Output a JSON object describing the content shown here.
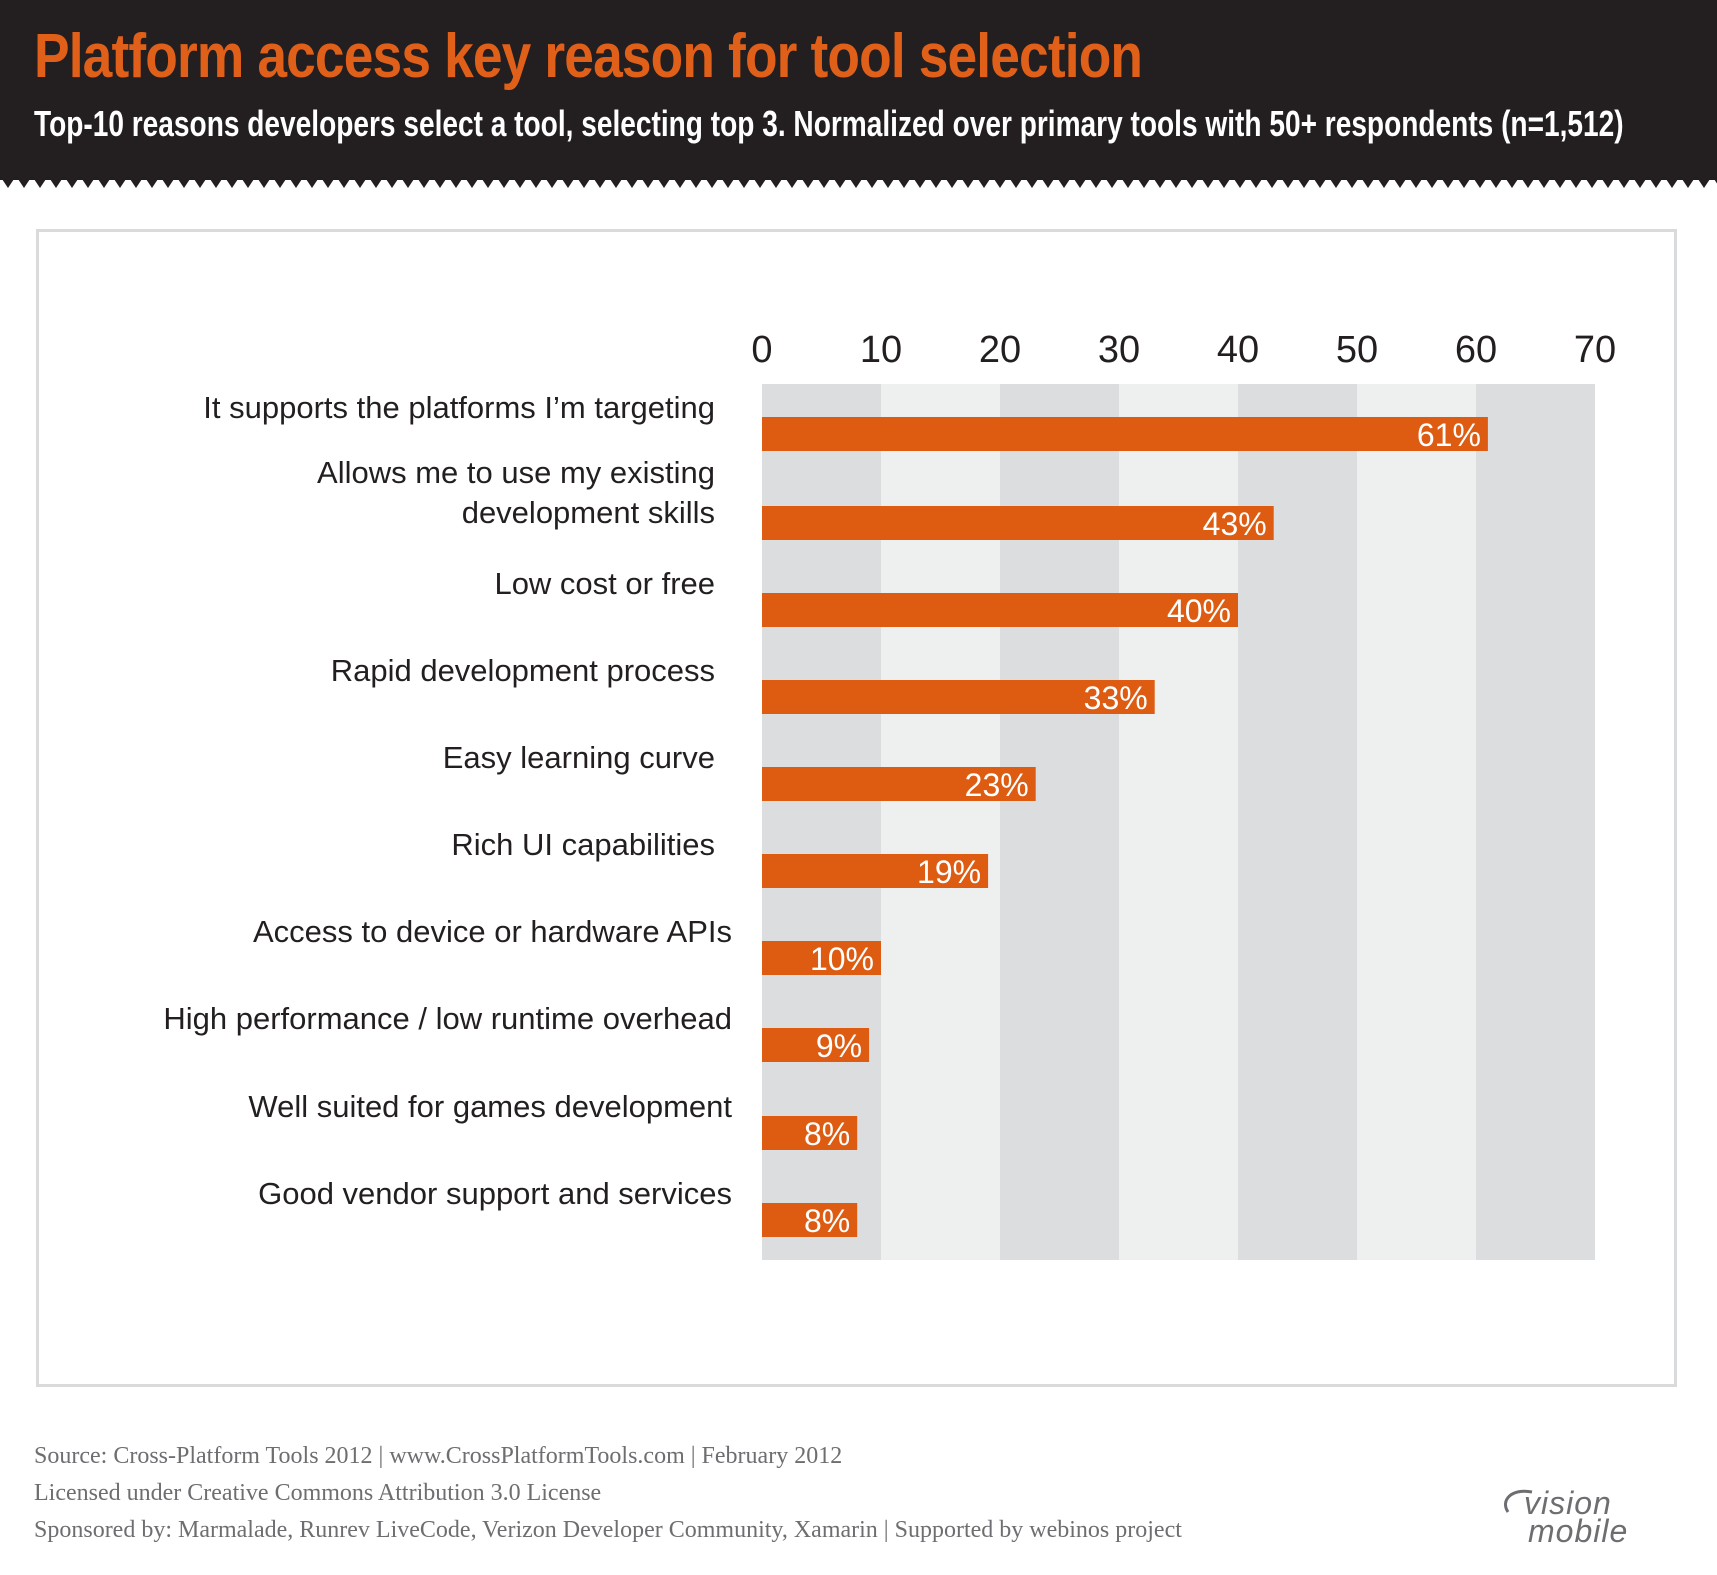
{
  "header": {
    "title": "Platform access key reason for tool selection",
    "subtitle": "Top-10 reasons developers select a tool, selecting top 3. Normalized over primary tools with 50+ respondents (n=1,512)"
  },
  "chart_data": {
    "type": "bar",
    "orientation": "horizontal",
    "title": "Platform access key reason for tool selection",
    "subtitle": "Top-10 reasons developers select a tool, selecting top 3. Normalized over primary tools with 50+ respondents (n=1,512)",
    "xlabel": "",
    "ylabel": "",
    "xlim": [
      0,
      70
    ],
    "ticks": [
      0,
      10,
      20,
      30,
      40,
      50,
      60,
      70
    ],
    "categories": [
      [
        "It supports the platforms I’m targeting"
      ],
      [
        "Allows me to use my existing",
        "development skills"
      ],
      [
        "Low cost or free"
      ],
      [
        "Rapid development process"
      ],
      [
        "Easy learning curve"
      ],
      [
        "Rich UI capabilities"
      ],
      [
        "Access to device or hardware APIs"
      ],
      [
        "High performance / low runtime overhead"
      ],
      [
        "Well suited for games development"
      ],
      [
        "Good vendor support and services"
      ]
    ],
    "values": [
      61,
      43,
      40,
      33,
      23,
      19,
      10,
      9,
      8,
      8
    ],
    "value_labels": [
      "61%",
      "43%",
      "40%",
      "33%",
      "23%",
      "19%",
      "10%",
      "9%",
      "8%",
      "8%"
    ],
    "bar_color": "#dd5c12",
    "band_colors": [
      "#dcdddf",
      "#eeefef"
    ],
    "label_color": "#231f20",
    "value_label_color": "#ffffff"
  },
  "footer": {
    "source": "Source: Cross-Platform Tools 2012 | www.CrossPlatformTools.com | February 2012",
    "license": "Licensed under Creative Commons Attribution 3.0 License",
    "sponsors": "Sponsored by: Marmalade, Runrev LiveCode, Verizon Developer Community, Xamarin | Supported by webinos project"
  },
  "logo": {
    "line1": "vision",
    "line2": "mobile"
  }
}
